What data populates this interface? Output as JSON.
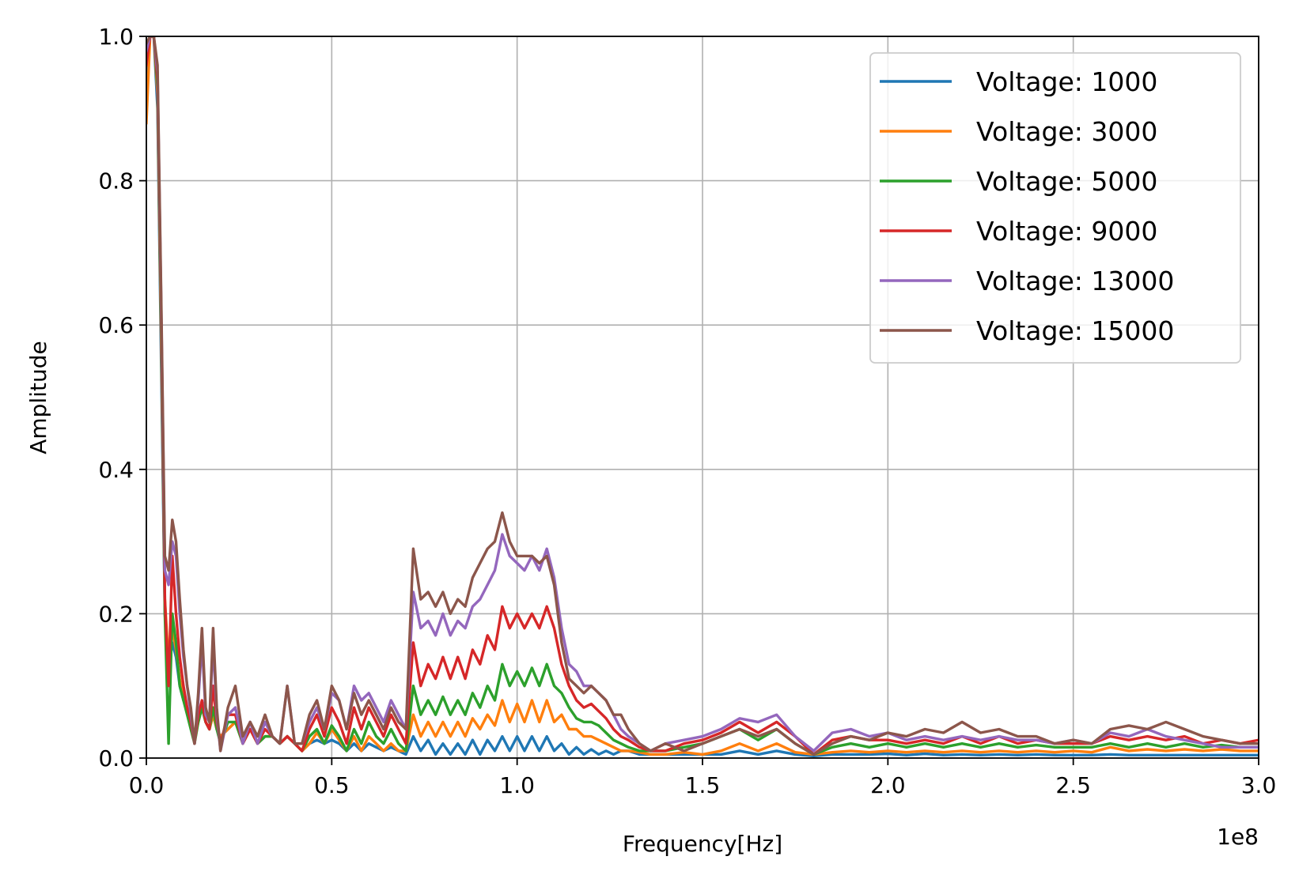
{
  "chart_data": {
    "type": "line",
    "title": "",
    "xlabel": "Frequency[Hz]",
    "ylabel": "Amplitude",
    "x_offset_text": "1e8",
    "xlim": [
      0,
      300000000
    ],
    "ylim": [
      0,
      1.0
    ],
    "x_scale_factor": 100000000,
    "x_ticks": [
      0,
      50000000,
      100000000,
      150000000,
      200000000,
      250000000,
      300000000
    ],
    "x_tick_labels": [
      "0.0",
      "0.5",
      "1.0",
      "1.5",
      "2.0",
      "2.5",
      "3.0"
    ],
    "y_ticks": [
      0,
      0.2,
      0.4,
      0.6,
      0.8,
      1.0
    ],
    "y_tick_labels": [
      "0.0",
      "0.2",
      "0.4",
      "0.6",
      "0.8",
      "1.0"
    ],
    "grid": true,
    "legend_position": "top-right",
    "x": [
      0,
      1000000,
      2000000,
      3000000,
      4000000,
      5000000,
      6000000,
      7000000,
      8000000,
      9000000,
      10000000,
      11000000,
      12000000,
      13000000,
      14000000,
      15000000,
      16000000,
      17000000,
      18000000,
      19000000,
      20000000,
      22000000,
      24000000,
      26000000,
      28000000,
      30000000,
      32000000,
      34000000,
      36000000,
      38000000,
      40000000,
      42000000,
      44000000,
      46000000,
      48000000,
      50000000,
      52000000,
      54000000,
      56000000,
      58000000,
      60000000,
      62000000,
      64000000,
      66000000,
      68000000,
      70000000,
      72000000,
      74000000,
      76000000,
      78000000,
      80000000,
      82000000,
      84000000,
      86000000,
      88000000,
      90000000,
      92000000,
      94000000,
      96000000,
      98000000,
      100000000,
      102000000,
      104000000,
      106000000,
      108000000,
      110000000,
      112000000,
      114000000,
      116000000,
      118000000,
      120000000,
      122000000,
      124000000,
      126000000,
      128000000,
      130000000,
      133000000,
      136000000,
      140000000,
      145000000,
      150000000,
      155000000,
      160000000,
      165000000,
      170000000,
      175000000,
      180000000,
      185000000,
      190000000,
      195000000,
      200000000,
      205000000,
      210000000,
      215000000,
      220000000,
      225000000,
      230000000,
      235000000,
      240000000,
      245000000,
      250000000,
      255000000,
      260000000,
      265000000,
      270000000,
      275000000,
      280000000,
      285000000,
      290000000,
      295000000,
      300000000
    ],
    "series": [
      {
        "name": "Voltage: 1000",
        "color": "#1f77b4",
        "values": [
          0.95,
          1.0,
          1.0,
          0.9,
          0.55,
          0.2,
          0.12,
          0.16,
          0.14,
          0.1,
          0.08,
          0.07,
          0.05,
          0.03,
          0.05,
          0.07,
          0.05,
          0.04,
          0.06,
          0.04,
          0.03,
          0.04,
          0.05,
          0.03,
          0.04,
          0.02,
          0.03,
          0.03,
          0.02,
          0.03,
          0.02,
          0.01,
          0.02,
          0.025,
          0.02,
          0.025,
          0.02,
          0.01,
          0.02,
          0.01,
          0.02,
          0.015,
          0.01,
          0.015,
          0.01,
          0.005,
          0.03,
          0.01,
          0.025,
          0.005,
          0.02,
          0.005,
          0.02,
          0.005,
          0.025,
          0.005,
          0.025,
          0.01,
          0.03,
          0.01,
          0.03,
          0.01,
          0.03,
          0.01,
          0.03,
          0.01,
          0.02,
          0.005,
          0.015,
          0.005,
          0.012,
          0.005,
          0.01,
          0.005,
          0.01,
          0.01,
          0.005,
          0.005,
          0.005,
          0.005,
          0.005,
          0.005,
          0.01,
          0.005,
          0.01,
          0.005,
          0.003,
          0.005,
          0.005,
          0.005,
          0.006,
          0.004,
          0.006,
          0.004,
          0.005,
          0.004,
          0.005,
          0.004,
          0.005,
          0.004,
          0.004,
          0.004,
          0.005,
          0.004,
          0.004,
          0.004,
          0.004,
          0.004,
          0.004,
          0.004,
          0.004
        ]
      },
      {
        "name": "Voltage: 3000",
        "color": "#ff7f0e",
        "values": [
          0.88,
          1.0,
          1.0,
          0.92,
          0.58,
          0.22,
          0.13,
          0.18,
          0.15,
          0.11,
          0.08,
          0.07,
          0.05,
          0.03,
          0.05,
          0.07,
          0.05,
          0.04,
          0.06,
          0.04,
          0.03,
          0.04,
          0.05,
          0.03,
          0.04,
          0.02,
          0.03,
          0.03,
          0.02,
          0.03,
          0.02,
          0.01,
          0.02,
          0.035,
          0.02,
          0.04,
          0.025,
          0.01,
          0.03,
          0.01,
          0.03,
          0.02,
          0.01,
          0.02,
          0.01,
          0.01,
          0.06,
          0.03,
          0.05,
          0.03,
          0.05,
          0.03,
          0.05,
          0.03,
          0.055,
          0.04,
          0.06,
          0.045,
          0.08,
          0.05,
          0.075,
          0.05,
          0.08,
          0.05,
          0.08,
          0.05,
          0.06,
          0.04,
          0.04,
          0.03,
          0.03,
          0.025,
          0.02,
          0.015,
          0.01,
          0.01,
          0.008,
          0.005,
          0.005,
          0.008,
          0.005,
          0.01,
          0.02,
          0.01,
          0.02,
          0.008,
          0.005,
          0.008,
          0.01,
          0.008,
          0.01,
          0.008,
          0.01,
          0.008,
          0.01,
          0.008,
          0.01,
          0.008,
          0.01,
          0.008,
          0.01,
          0.008,
          0.015,
          0.01,
          0.012,
          0.01,
          0.012,
          0.01,
          0.012,
          0.01,
          0.01
        ]
      },
      {
        "name": "Voltage: 5000",
        "color": "#2ca02c",
        "values": [
          0.97,
          1.0,
          1.0,
          0.93,
          0.6,
          0.2,
          0.02,
          0.2,
          0.16,
          0.1,
          0.08,
          0.06,
          0.04,
          0.02,
          0.05,
          0.07,
          0.05,
          0.04,
          0.07,
          0.04,
          0.02,
          0.05,
          0.05,
          0.02,
          0.04,
          0.02,
          0.03,
          0.03,
          0.02,
          0.03,
          0.02,
          0.01,
          0.03,
          0.04,
          0.02,
          0.045,
          0.03,
          0.01,
          0.04,
          0.02,
          0.05,
          0.03,
          0.02,
          0.04,
          0.02,
          0.01,
          0.1,
          0.06,
          0.08,
          0.06,
          0.085,
          0.06,
          0.08,
          0.06,
          0.09,
          0.07,
          0.1,
          0.08,
          0.13,
          0.1,
          0.12,
          0.1,
          0.125,
          0.1,
          0.13,
          0.1,
          0.09,
          0.07,
          0.055,
          0.05,
          0.05,
          0.045,
          0.035,
          0.025,
          0.02,
          0.015,
          0.01,
          0.01,
          0.01,
          0.015,
          0.02,
          0.03,
          0.04,
          0.025,
          0.04,
          0.02,
          0.005,
          0.015,
          0.02,
          0.015,
          0.02,
          0.015,
          0.02,
          0.015,
          0.02,
          0.015,
          0.02,
          0.015,
          0.018,
          0.015,
          0.015,
          0.015,
          0.02,
          0.015,
          0.02,
          0.015,
          0.02,
          0.015,
          0.018,
          0.015,
          0.015
        ]
      },
      {
        "name": "Voltage: 9000",
        "color": "#d62728",
        "values": [
          0.96,
          1.0,
          1.0,
          0.94,
          0.62,
          0.22,
          0.1,
          0.28,
          0.2,
          0.14,
          0.1,
          0.07,
          0.05,
          0.02,
          0.06,
          0.08,
          0.05,
          0.04,
          0.1,
          0.05,
          0.02,
          0.06,
          0.06,
          0.02,
          0.04,
          0.02,
          0.04,
          0.03,
          0.02,
          0.03,
          0.02,
          0.01,
          0.04,
          0.06,
          0.03,
          0.07,
          0.05,
          0.02,
          0.07,
          0.04,
          0.07,
          0.05,
          0.03,
          0.06,
          0.04,
          0.02,
          0.16,
          0.1,
          0.13,
          0.11,
          0.14,
          0.11,
          0.14,
          0.11,
          0.15,
          0.13,
          0.17,
          0.15,
          0.21,
          0.18,
          0.2,
          0.18,
          0.2,
          0.18,
          0.21,
          0.18,
          0.13,
          0.1,
          0.08,
          0.07,
          0.075,
          0.065,
          0.055,
          0.04,
          0.03,
          0.025,
          0.015,
          0.01,
          0.01,
          0.02,
          0.025,
          0.035,
          0.05,
          0.035,
          0.05,
          0.03,
          0.005,
          0.025,
          0.03,
          0.025,
          0.025,
          0.02,
          0.025,
          0.02,
          0.03,
          0.02,
          0.03,
          0.02,
          0.025,
          0.02,
          0.02,
          0.02,
          0.03,
          0.025,
          0.03,
          0.025,
          0.03,
          0.02,
          0.025,
          0.02,
          0.025
        ]
      },
      {
        "name": "Voltage: 13000",
        "color": "#9467bd",
        "values": [
          0.98,
          1.0,
          1.0,
          0.95,
          0.63,
          0.26,
          0.24,
          0.3,
          0.28,
          0.2,
          0.14,
          0.1,
          0.06,
          0.02,
          0.08,
          0.16,
          0.06,
          0.05,
          0.16,
          0.06,
          0.01,
          0.06,
          0.07,
          0.02,
          0.05,
          0.02,
          0.05,
          0.03,
          0.02,
          0.1,
          0.02,
          0.02,
          0.05,
          0.07,
          0.04,
          0.09,
          0.08,
          0.04,
          0.1,
          0.08,
          0.09,
          0.07,
          0.05,
          0.08,
          0.06,
          0.04,
          0.23,
          0.18,
          0.19,
          0.17,
          0.2,
          0.17,
          0.19,
          0.18,
          0.21,
          0.22,
          0.24,
          0.26,
          0.31,
          0.28,
          0.27,
          0.26,
          0.28,
          0.26,
          0.29,
          0.25,
          0.18,
          0.13,
          0.12,
          0.1,
          0.1,
          0.09,
          0.08,
          0.06,
          0.04,
          0.03,
          0.02,
          0.01,
          0.02,
          0.025,
          0.03,
          0.04,
          0.055,
          0.05,
          0.06,
          0.03,
          0.01,
          0.035,
          0.04,
          0.03,
          0.035,
          0.025,
          0.03,
          0.025,
          0.03,
          0.025,
          0.03,
          0.025,
          0.025,
          0.02,
          0.025,
          0.02,
          0.035,
          0.03,
          0.04,
          0.03,
          0.025,
          0.02,
          0.015,
          0.015,
          0.015
        ]
      },
      {
        "name": "Voltage: 15000",
        "color": "#8c564b",
        "values": [
          0.99,
          1.0,
          1.0,
          0.96,
          0.64,
          0.28,
          0.26,
          0.33,
          0.3,
          0.22,
          0.15,
          0.1,
          0.07,
          0.02,
          0.09,
          0.18,
          0.07,
          0.05,
          0.18,
          0.07,
          0.01,
          0.07,
          0.1,
          0.03,
          0.05,
          0.03,
          0.06,
          0.03,
          0.02,
          0.1,
          0.02,
          0.02,
          0.06,
          0.08,
          0.04,
          0.1,
          0.08,
          0.04,
          0.09,
          0.06,
          0.08,
          0.06,
          0.04,
          0.07,
          0.05,
          0.04,
          0.29,
          0.22,
          0.23,
          0.21,
          0.23,
          0.2,
          0.22,
          0.21,
          0.25,
          0.27,
          0.29,
          0.3,
          0.34,
          0.3,
          0.28,
          0.28,
          0.28,
          0.27,
          0.28,
          0.24,
          0.16,
          0.11,
          0.1,
          0.09,
          0.1,
          0.09,
          0.08,
          0.06,
          0.06,
          0.04,
          0.02,
          0.01,
          0.02,
          0.01,
          0.02,
          0.03,
          0.04,
          0.03,
          0.04,
          0.02,
          0.005,
          0.02,
          0.03,
          0.025,
          0.035,
          0.03,
          0.04,
          0.035,
          0.05,
          0.035,
          0.04,
          0.03,
          0.03,
          0.02,
          0.025,
          0.02,
          0.04,
          0.045,
          0.04,
          0.05,
          0.04,
          0.03,
          0.025,
          0.02,
          0.02
        ]
      }
    ]
  }
}
